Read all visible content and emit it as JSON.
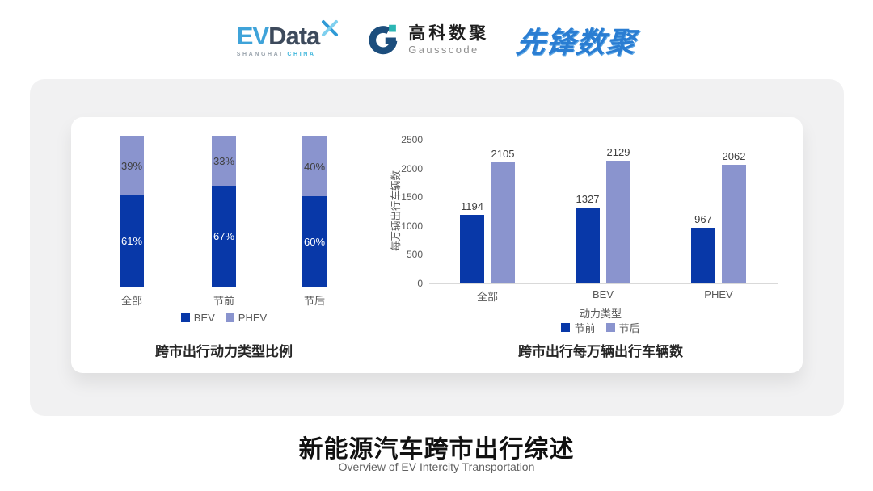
{
  "logos": {
    "evdata": {
      "ev": "EV",
      "data": "Data",
      "sub1": "SHANGHAI",
      "sub2": "CHINA"
    },
    "gausscode": {
      "cn": "高科数聚",
      "en": "Gausscode"
    },
    "xianfeng": {
      "text": "先锋数聚"
    }
  },
  "colors": {
    "series_dark_blue": "#0838a8",
    "series_light_blue": "#8a94ce",
    "card_gray": "#f1f1f2",
    "axis_gray": "#d9d9d9",
    "label_gray": "#595959",
    "evdata_blue": "#3fa3d9",
    "evdata_dark": "#3d4a5c",
    "gausscode_navy": "#1c4e7d",
    "gausscode_teal": "#2cb6b4",
    "xianfeng_blue": "#2a7dd2"
  },
  "chart_data": [
    {
      "type": "bar",
      "subtype": "stacked_100_percent",
      "title": "跨市出行动力类型比例",
      "categories": [
        "全部",
        "节前",
        "节后"
      ],
      "series": [
        {
          "name": "BEV",
          "color": "#0838a8",
          "values": [
            61,
            67,
            60
          ],
          "labels": [
            "61%",
            "67%",
            "60%"
          ],
          "label_color": "#ffffff"
        },
        {
          "name": "PHEV",
          "color": "#8a94ce",
          "values": [
            39,
            33,
            40
          ],
          "labels": [
            "39%",
            "33%",
            "40%"
          ],
          "label_color": "#3f3f3f"
        }
      ],
      "ylim": [
        0,
        100
      ],
      "unit": "percent",
      "grid": false,
      "axis_labels_hidden": true,
      "legend_position": "bottom"
    },
    {
      "type": "bar",
      "subtype": "grouped",
      "title": "跨市出行每万辆出行车辆数",
      "categories": [
        "全部",
        "BEV",
        "PHEV"
      ],
      "xlabel": "动力类型",
      "ylabel": "每万辆出行车辆数",
      "ylim": [
        0,
        2500
      ],
      "yticks": [
        0,
        500,
        1000,
        1500,
        2000,
        2500
      ],
      "series": [
        {
          "name": "节前",
          "color": "#0838a8",
          "values": [
            1194,
            1327,
            967
          ]
        },
        {
          "name": "节后",
          "color": "#8a94ce",
          "values": [
            2105,
            2129,
            2062
          ]
        }
      ],
      "grid": false,
      "legend_position": "bottom"
    }
  ],
  "footer": {
    "title": "新能源汽车跨市出行综述",
    "subtitle": "Overview of EV Intercity Transportation"
  }
}
